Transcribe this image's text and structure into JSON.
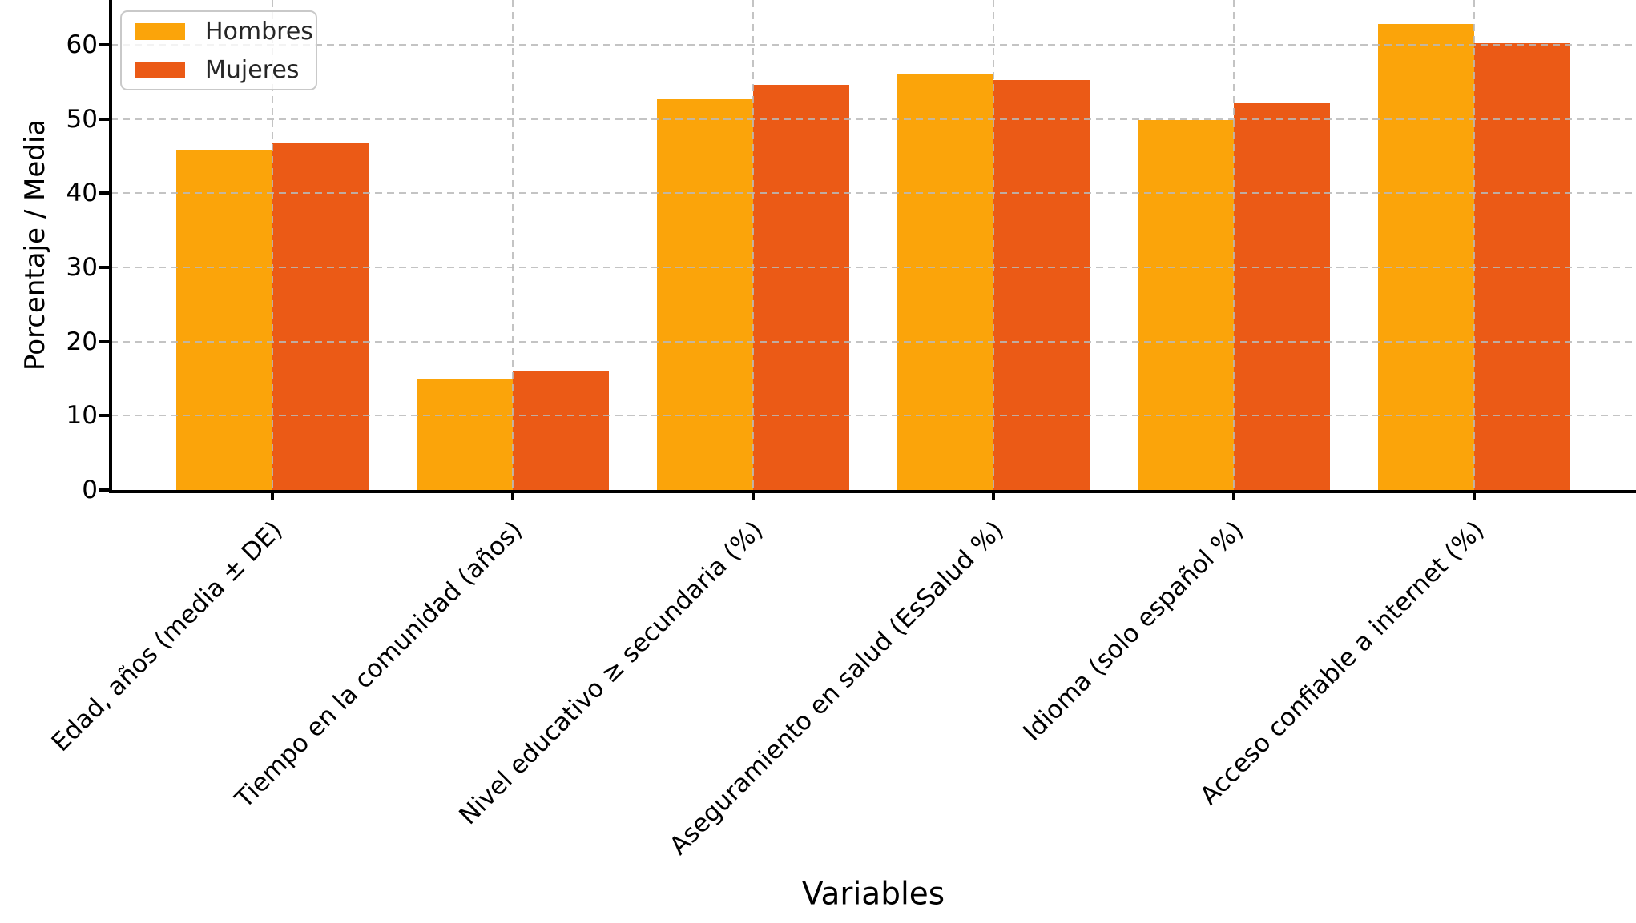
{
  "chart_data": {
    "type": "bar",
    "title": "",
    "xlabel": "Variables",
    "ylabel": "Porcentaje / Media",
    "categories": [
      "Edad, años (media ± DE)",
      "Tiempo en la comunidad (años)",
      "Nivel educativo ≥ secundaria (%)",
      "Aseguramiento en salud (EsSalud %)",
      "Idioma (solo español %)",
      "Acceso confiable a internet (%)"
    ],
    "series": [
      {
        "name": "Hombres",
        "color": "#FBA40A",
        "values": [
          45.7,
          15.0,
          52.7,
          56.1,
          49.8,
          62.8
        ]
      },
      {
        "name": "Mujeres",
        "color": "#EB5A16",
        "values": [
          46.7,
          16.0,
          54.6,
          55.2,
          52.1,
          60.2
        ]
      }
    ],
    "yticks": [
      0,
      10,
      20,
      30,
      40,
      50,
      60
    ],
    "ylim": [
      0,
      66
    ],
    "grid": true,
    "grid_style": "dashed",
    "legend_position": "upper left",
    "axis_color": "#000000",
    "grid_color": "#b9b9b9",
    "background_color": "#ffffff"
  }
}
